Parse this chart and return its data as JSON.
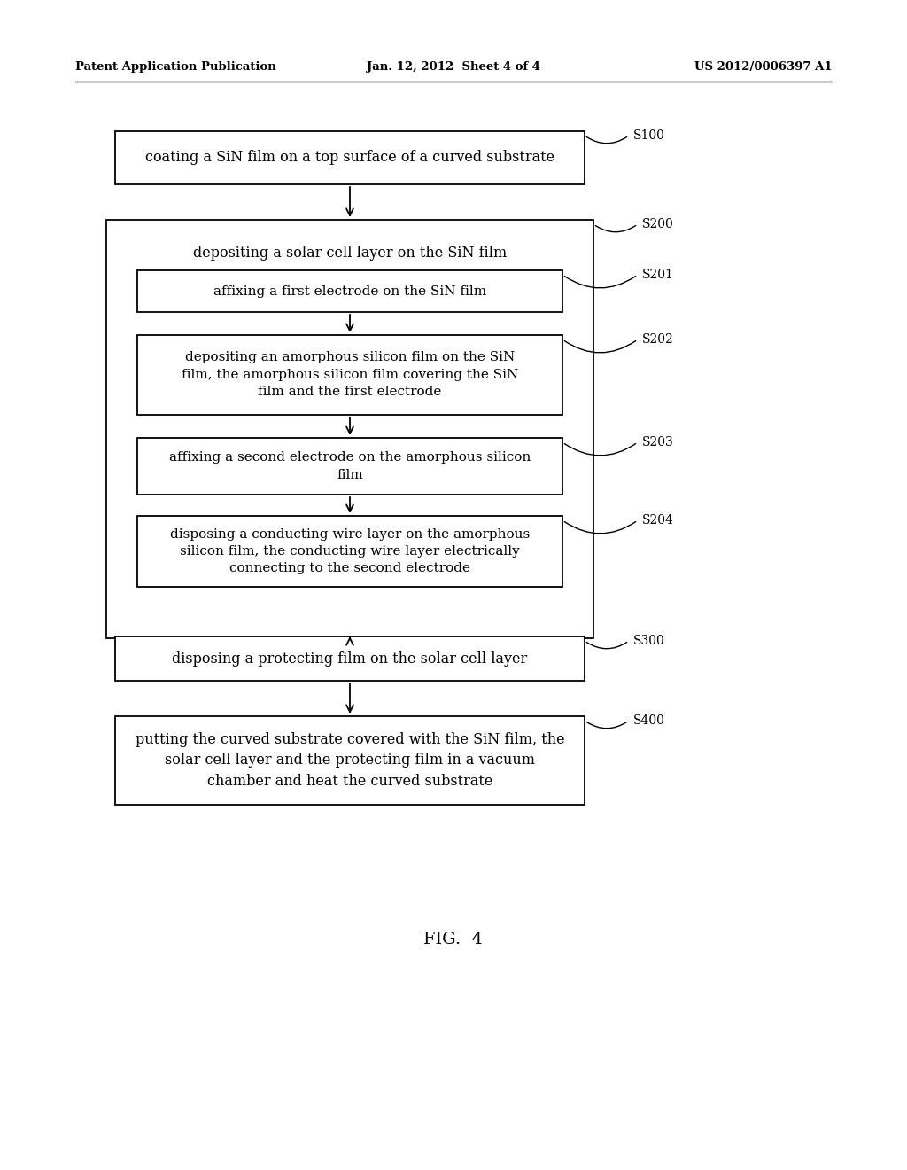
{
  "background_color": "#ffffff",
  "header_left": "Patent Application Publication",
  "header_center": "Jan. 12, 2012  Sheet 4 of 4",
  "header_right": "US 2012/0006397 A1",
  "figure_label": "FIG.  4",
  "s100_text": "coating a SiN film on a top surface of a curved substrate",
  "s200_text": "depositing a solar cell layer on the SiN film",
  "s201_text": "affixing a first electrode on the SiN film",
  "s202_text": "depositing an amorphous silicon film on the SiN\nfilm, the amorphous silicon film covering the SiN\nfilm and the first electrode",
  "s203_text": "affixing a second electrode on the amorphous silicon\nfilm",
  "s204_text": "disposing a conducting wire layer on the amorphous\nsilicon film, the conducting wire layer electrically\nconnecting to the second electrode",
  "s300_text": "disposing a protecting film on the solar cell layer",
  "s400_text": "putting the curved substrate covered with the SiN film, the\nsolar cell layer and the protecting film in a vacuum\nchamber and heat the curved substrate",
  "text_color": "#000000",
  "box_edge_color": "#000000",
  "line_color": "#000000"
}
